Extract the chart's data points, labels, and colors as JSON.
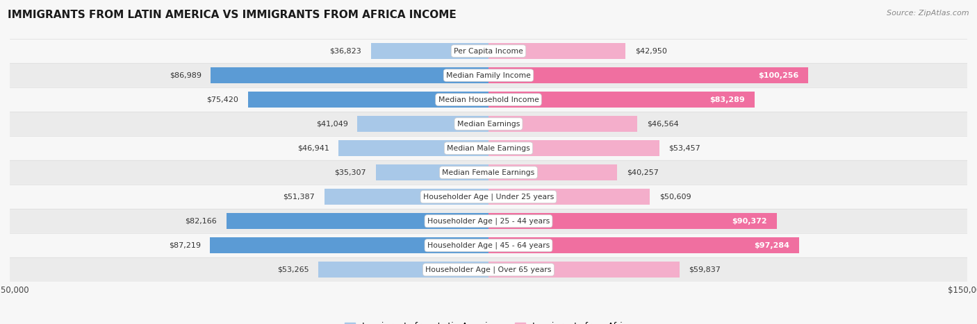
{
  "title": "IMMIGRANTS FROM LATIN AMERICA VS IMMIGRANTS FROM AFRICA INCOME",
  "source": "Source: ZipAtlas.com",
  "categories": [
    "Per Capita Income",
    "Median Family Income",
    "Median Household Income",
    "Median Earnings",
    "Median Male Earnings",
    "Median Female Earnings",
    "Householder Age | Under 25 years",
    "Householder Age | 25 - 44 years",
    "Householder Age | 45 - 64 years",
    "Householder Age | Over 65 years"
  ],
  "latin_america": [
    36823,
    86989,
    75420,
    41049,
    46941,
    35307,
    51387,
    82166,
    87219,
    53265
  ],
  "africa": [
    42950,
    100256,
    83289,
    46564,
    53457,
    40257,
    50609,
    90372,
    97284,
    59837
  ],
  "latin_america_labels": [
    "$36,823",
    "$86,989",
    "$75,420",
    "$41,049",
    "$46,941",
    "$35,307",
    "$51,387",
    "$82,166",
    "$87,219",
    "$53,265"
  ],
  "africa_labels": [
    "$42,950",
    "$100,256",
    "$83,289",
    "$46,564",
    "$53,457",
    "$40,257",
    "$50,609",
    "$90,372",
    "$97,284",
    "$59,837"
  ],
  "max_val": 150000,
  "color_latin_light": "#A8C8E8",
  "color_latin_dark": "#5B9BD5",
  "color_africa_light": "#F4AECB",
  "color_africa_dark": "#F06FA0",
  "latin_dark_threshold": 75000,
  "africa_dark_threshold": 80000,
  "africa_inside_label_threshold": 80000,
  "latin_inside_label_threshold": 999999,
  "bg_light": "#f7f7f7",
  "bg_dark": "#ebebeb",
  "row_border": "#dddddd"
}
